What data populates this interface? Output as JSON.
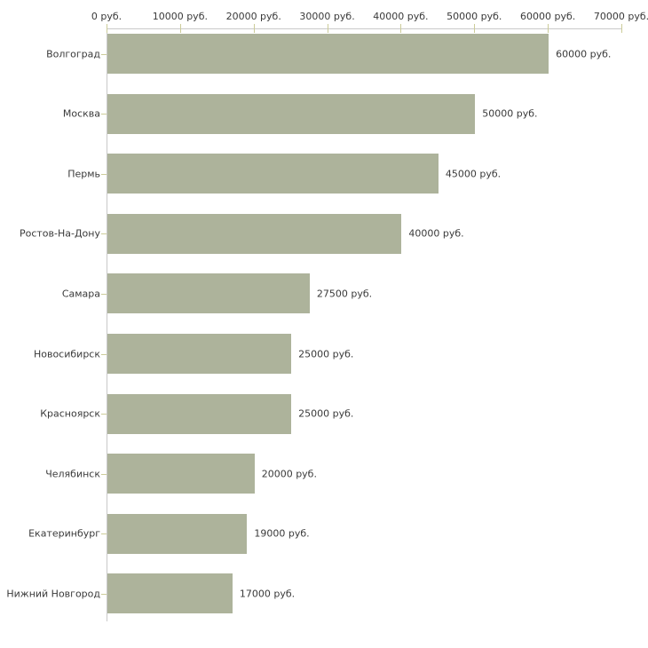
{
  "chart_data": {
    "type": "bar",
    "orientation": "horizontal",
    "title": "",
    "xlabel": "",
    "ylabel": "",
    "grid": false,
    "legend": null,
    "categories": [
      "Волгоград",
      "Москва",
      "Пермь",
      "Ростов-На-Дону",
      "Самара",
      "Новосибирск",
      "Красноярск",
      "Челябинск",
      "Екатеринбург",
      "Нижний Новгород"
    ],
    "values": [
      60000,
      50000,
      45000,
      40000,
      27500,
      25000,
      25000,
      20000,
      19000,
      17000
    ],
    "value_labels": [
      "60000 руб.",
      "50000 руб.",
      "45000 руб.",
      "40000 руб.",
      "27500 руб.",
      "25000 руб.",
      "25000 руб.",
      "20000 руб.",
      "19000 руб.",
      "17000 руб."
    ],
    "x_axis": {
      "position": "top",
      "min": 0,
      "max": 70000,
      "ticks": [
        0,
        10000,
        20000,
        30000,
        40000,
        50000,
        60000,
        70000
      ],
      "tick_labels": [
        "0 руб.",
        "10000 руб.",
        "20000 руб.",
        "30000 руб.",
        "40000 руб.",
        "50000 руб.",
        "60000 руб.",
        "70000 руб."
      ]
    },
    "colors": {
      "bar": "#adb39b",
      "axis_line": "#c9c9c9",
      "tick": "#cccc99",
      "text": "#3a3a3a",
      "background": "#ffffff"
    }
  }
}
